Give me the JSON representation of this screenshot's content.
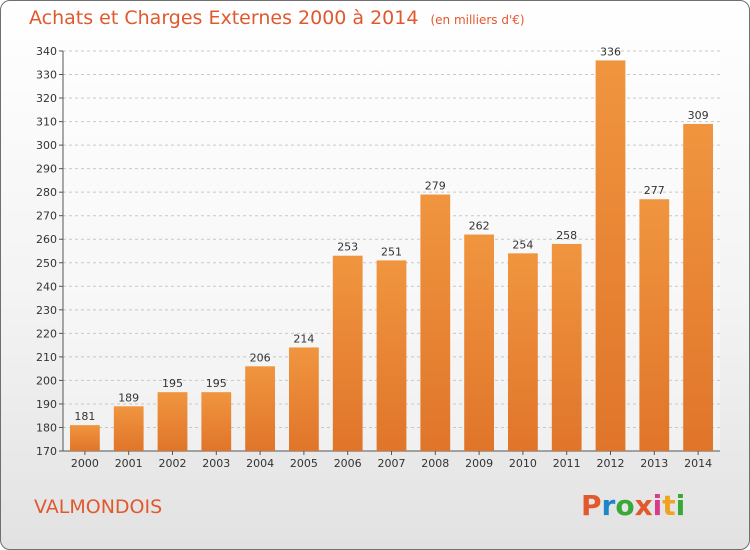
{
  "header": {
    "title": "Achats et Charges Externes 2000 à 2014",
    "subtitle": "(en milliers d'€)"
  },
  "footer": {
    "place": "VALMONDOIS",
    "logo_letters": [
      "P",
      "r",
      "o",
      "x",
      "i",
      "t",
      "i"
    ],
    "logo_colors": [
      "#e2592e",
      "#1d86c9",
      "#3aa739",
      "#e2592e",
      "#d93b8c",
      "#f0a321",
      "#3aa739"
    ]
  },
  "colors": {
    "bar": "#f0953f",
    "bar_dark": "#e0752a",
    "grid": "#c8c8c8",
    "axis": "#555555"
  },
  "chart_data": {
    "type": "bar",
    "title": "Achats et Charges Externes 2000 à 2014",
    "subtitle": "(en milliers d'€)",
    "xlabel": "",
    "ylabel": "",
    "ylim": [
      170,
      340
    ],
    "yticks": [
      170,
      180,
      190,
      200,
      210,
      220,
      230,
      240,
      250,
      260,
      270,
      280,
      290,
      300,
      310,
      320,
      330,
      340
    ],
    "grid": true,
    "categories": [
      "2000",
      "2001",
      "2002",
      "2003",
      "2004",
      "2005",
      "2006",
      "2007",
      "2008",
      "2009",
      "2010",
      "2011",
      "2012",
      "2013",
      "2014"
    ],
    "values": [
      181,
      189,
      195,
      195,
      206,
      214,
      253,
      251,
      279,
      262,
      254,
      258,
      336,
      277,
      309
    ]
  }
}
